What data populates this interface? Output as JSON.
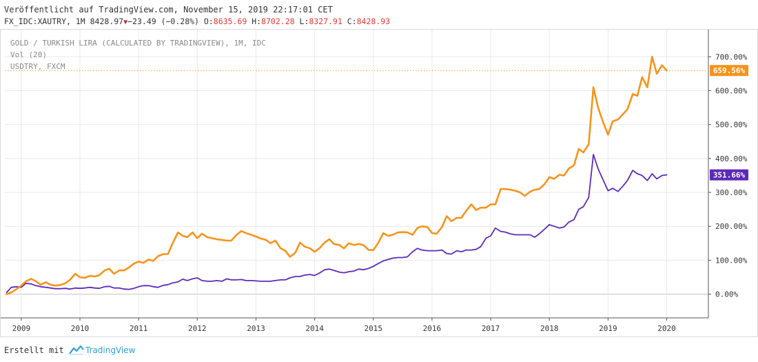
{
  "header": {
    "published": "Veröffentlicht auf TradingView.com, November 15, 2019 22:17:01 CET",
    "symbol_info": "FX_IDC:XAUTRY, 1M 8428.97",
    "change": "−23.49 (−0.28%)",
    "o_label": "O:",
    "o_value": "8635.69",
    "h_label": "H:",
    "h_value": "8702.28",
    "l_label": "L:",
    "l_value": "8327.91",
    "c_label": "C:",
    "c_value": "8428.93"
  },
  "footer": {
    "prefix": "Erstellt mit",
    "brand": "TradingView"
  },
  "colors": {
    "gold": "#f7931a",
    "usd": "#5b2ab8",
    "grid": "#e9e9e9",
    "lastline": "#f7931a"
  },
  "chart_data": {
    "type": "line",
    "legend": [
      "GOLD / TURKISH LIRA (CALCULATED BY TRADINGVIEW), 1M, IDC",
      "Vol (20)",
      "USDTRY, FXCM"
    ],
    "x_ticks": [
      "2009",
      "2010",
      "2011",
      "2012",
      "2013",
      "2014",
      "2015",
      "2016",
      "2017",
      "2018",
      "2019",
      "2020"
    ],
    "y_ticks": [
      "0.00%",
      "100.00%",
      "200.00%",
      "300.00%",
      "400.00%",
      "500.00%",
      "600.00%",
      "700.00%"
    ],
    "ylim": [
      -70,
      780
    ],
    "xlim": [
      2008.72,
      2020.71
    ],
    "grid": true,
    "series": [
      {
        "name": "GOLD / TURKISH LIRA",
        "color": "#f7931a",
        "last_label": "659.56%",
        "points": [
          [
            2008.75,
            0
          ],
          [
            2008.83,
            5
          ],
          [
            2008.92,
            15
          ],
          [
            2009.0,
            25
          ],
          [
            2009.08,
            38
          ],
          [
            2009.17,
            45
          ],
          [
            2009.25,
            38
          ],
          [
            2009.33,
            28
          ],
          [
            2009.42,
            35
          ],
          [
            2009.5,
            28
          ],
          [
            2009.58,
            25
          ],
          [
            2009.67,
            27
          ],
          [
            2009.75,
            32
          ],
          [
            2009.83,
            42
          ],
          [
            2009.92,
            60
          ],
          [
            2010.0,
            50
          ],
          [
            2010.08,
            48
          ],
          [
            2010.17,
            54
          ],
          [
            2010.25,
            52
          ],
          [
            2010.33,
            56
          ],
          [
            2010.42,
            70
          ],
          [
            2010.5,
            75
          ],
          [
            2010.58,
            60
          ],
          [
            2010.67,
            70
          ],
          [
            2010.75,
            70
          ],
          [
            2010.83,
            78
          ],
          [
            2010.92,
            90
          ],
          [
            2011.0,
            96
          ],
          [
            2011.08,
            92
          ],
          [
            2011.17,
            102
          ],
          [
            2011.25,
            98
          ],
          [
            2011.33,
            112
          ],
          [
            2011.42,
            118
          ],
          [
            2011.5,
            118
          ],
          [
            2011.58,
            150
          ],
          [
            2011.67,
            182
          ],
          [
            2011.75,
            172
          ],
          [
            2011.83,
            168
          ],
          [
            2011.92,
            182
          ],
          [
            2012.0,
            165
          ],
          [
            2012.08,
            178
          ],
          [
            2012.17,
            168
          ],
          [
            2012.25,
            165
          ],
          [
            2012.33,
            162
          ],
          [
            2012.42,
            160
          ],
          [
            2012.5,
            158
          ],
          [
            2012.58,
            158
          ],
          [
            2012.67,
            175
          ],
          [
            2012.75,
            186
          ],
          [
            2012.83,
            180
          ],
          [
            2012.92,
            175
          ],
          [
            2013.0,
            170
          ],
          [
            2013.08,
            164
          ],
          [
            2013.17,
            160
          ],
          [
            2013.25,
            150
          ],
          [
            2013.33,
            158
          ],
          [
            2013.42,
            135
          ],
          [
            2013.5,
            128
          ],
          [
            2013.58,
            110
          ],
          [
            2013.67,
            122
          ],
          [
            2013.75,
            152
          ],
          [
            2013.83,
            140
          ],
          [
            2013.92,
            135
          ],
          [
            2014.0,
            125
          ],
          [
            2014.08,
            135
          ],
          [
            2014.17,
            152
          ],
          [
            2014.25,
            162
          ],
          [
            2014.33,
            148
          ],
          [
            2014.42,
            145
          ],
          [
            2014.5,
            135
          ],
          [
            2014.58,
            150
          ],
          [
            2014.67,
            145
          ],
          [
            2014.75,
            148
          ],
          [
            2014.83,
            145
          ],
          [
            2014.92,
            130
          ],
          [
            2015.0,
            130
          ],
          [
            2015.08,
            150
          ],
          [
            2015.17,
            180
          ],
          [
            2015.25,
            172
          ],
          [
            2015.33,
            175
          ],
          [
            2015.42,
            182
          ],
          [
            2015.5,
            183
          ],
          [
            2015.58,
            182
          ],
          [
            2015.67,
            175
          ],
          [
            2015.75,
            195
          ],
          [
            2015.83,
            200
          ],
          [
            2015.92,
            198
          ],
          [
            2016.0,
            180
          ],
          [
            2016.08,
            178
          ],
          [
            2016.17,
            198
          ],
          [
            2016.25,
            230
          ],
          [
            2016.33,
            215
          ],
          [
            2016.42,
            225
          ],
          [
            2016.5,
            225
          ],
          [
            2016.58,
            245
          ],
          [
            2016.67,
            265
          ],
          [
            2016.75,
            248
          ],
          [
            2016.83,
            255
          ],
          [
            2016.92,
            255
          ],
          [
            2017.0,
            265
          ],
          [
            2017.08,
            265
          ],
          [
            2017.17,
            310
          ],
          [
            2017.25,
            310
          ],
          [
            2017.33,
            308
          ],
          [
            2017.42,
            305
          ],
          [
            2017.5,
            300
          ],
          [
            2017.58,
            290
          ],
          [
            2017.67,
            302
          ],
          [
            2017.75,
            308
          ],
          [
            2017.83,
            310
          ],
          [
            2017.92,
            325
          ],
          [
            2018.0,
            345
          ],
          [
            2018.08,
            340
          ],
          [
            2018.17,
            352
          ],
          [
            2018.25,
            350
          ],
          [
            2018.33,
            370
          ],
          [
            2018.42,
            380
          ],
          [
            2018.5,
            428
          ],
          [
            2018.58,
            418
          ],
          [
            2018.67,
            442
          ],
          [
            2018.75,
            610
          ],
          [
            2018.83,
            550
          ],
          [
            2018.92,
            505
          ],
          [
            2019.0,
            470
          ],
          [
            2019.08,
            510
          ],
          [
            2019.17,
            515
          ],
          [
            2019.25,
            530
          ],
          [
            2019.33,
            545
          ],
          [
            2019.42,
            590
          ],
          [
            2019.5,
            585
          ],
          [
            2019.58,
            640
          ],
          [
            2019.67,
            610
          ],
          [
            2019.75,
            700
          ],
          [
            2019.83,
            650
          ],
          [
            2019.92,
            675
          ],
          [
            2020.0,
            659.56
          ]
        ]
      },
      {
        "name": "USDTRY, FXCM",
        "color": "#5b2ab8",
        "last_label": "351.66%",
        "points": [
          [
            2008.75,
            5
          ],
          [
            2008.83,
            20
          ],
          [
            2008.92,
            22
          ],
          [
            2009.0,
            20
          ],
          [
            2009.08,
            32
          ],
          [
            2009.17,
            30
          ],
          [
            2009.25,
            25
          ],
          [
            2009.33,
            22
          ],
          [
            2009.42,
            20
          ],
          [
            2009.5,
            18
          ],
          [
            2009.58,
            16
          ],
          [
            2009.67,
            16
          ],
          [
            2009.75,
            17
          ],
          [
            2009.83,
            15
          ],
          [
            2009.92,
            18
          ],
          [
            2010.0,
            17
          ],
          [
            2010.08,
            18
          ],
          [
            2010.17,
            20
          ],
          [
            2010.25,
            18
          ],
          [
            2010.33,
            17
          ],
          [
            2010.42,
            22
          ],
          [
            2010.5,
            23
          ],
          [
            2010.58,
            18
          ],
          [
            2010.67,
            18
          ],
          [
            2010.75,
            15
          ],
          [
            2010.83,
            14
          ],
          [
            2010.92,
            17
          ],
          [
            2011.0,
            22
          ],
          [
            2011.08,
            25
          ],
          [
            2011.17,
            25
          ],
          [
            2011.25,
            22
          ],
          [
            2011.33,
            20
          ],
          [
            2011.42,
            26
          ],
          [
            2011.5,
            28
          ],
          [
            2011.58,
            33
          ],
          [
            2011.67,
            36
          ],
          [
            2011.75,
            44
          ],
          [
            2011.83,
            40
          ],
          [
            2011.92,
            45
          ],
          [
            2012.0,
            48
          ],
          [
            2012.08,
            40
          ],
          [
            2012.17,
            38
          ],
          [
            2012.25,
            38
          ],
          [
            2012.33,
            40
          ],
          [
            2012.42,
            38
          ],
          [
            2012.5,
            45
          ],
          [
            2012.58,
            42
          ],
          [
            2012.67,
            42
          ],
          [
            2012.75,
            43
          ],
          [
            2012.83,
            40
          ],
          [
            2012.92,
            40
          ],
          [
            2013.0,
            39
          ],
          [
            2013.08,
            38
          ],
          [
            2013.17,
            38
          ],
          [
            2013.25,
            38
          ],
          [
            2013.33,
            40
          ],
          [
            2013.42,
            42
          ],
          [
            2013.5,
            42
          ],
          [
            2013.58,
            48
          ],
          [
            2013.67,
            52
          ],
          [
            2013.75,
            52
          ],
          [
            2013.83,
            56
          ],
          [
            2013.92,
            58
          ],
          [
            2014.0,
            55
          ],
          [
            2014.08,
            62
          ],
          [
            2014.17,
            72
          ],
          [
            2014.25,
            74
          ],
          [
            2014.33,
            70
          ],
          [
            2014.42,
            65
          ],
          [
            2014.5,
            63
          ],
          [
            2014.58,
            66
          ],
          [
            2014.67,
            68
          ],
          [
            2014.75,
            74
          ],
          [
            2014.83,
            72
          ],
          [
            2014.92,
            76
          ],
          [
            2015.0,
            82
          ],
          [
            2015.08,
            90
          ],
          [
            2015.17,
            98
          ],
          [
            2015.25,
            102
          ],
          [
            2015.33,
            106
          ],
          [
            2015.42,
            108
          ],
          [
            2015.5,
            108
          ],
          [
            2015.58,
            110
          ],
          [
            2015.67,
            125
          ],
          [
            2015.75,
            135
          ],
          [
            2015.83,
            130
          ],
          [
            2015.92,
            128
          ],
          [
            2016.0,
            128
          ],
          [
            2016.08,
            128
          ],
          [
            2016.17,
            130
          ],
          [
            2016.25,
            120
          ],
          [
            2016.33,
            118
          ],
          [
            2016.42,
            128
          ],
          [
            2016.5,
            125
          ],
          [
            2016.58,
            130
          ],
          [
            2016.67,
            130
          ],
          [
            2016.75,
            132
          ],
          [
            2016.83,
            140
          ],
          [
            2016.92,
            165
          ],
          [
            2017.0,
            172
          ],
          [
            2017.08,
            195
          ],
          [
            2017.17,
            185
          ],
          [
            2017.25,
            183
          ],
          [
            2017.33,
            178
          ],
          [
            2017.42,
            175
          ],
          [
            2017.5,
            175
          ],
          [
            2017.58,
            175
          ],
          [
            2017.67,
            175
          ],
          [
            2017.75,
            168
          ],
          [
            2017.83,
            178
          ],
          [
            2017.92,
            192
          ],
          [
            2018.0,
            205
          ],
          [
            2018.08,
            200
          ],
          [
            2018.17,
            195
          ],
          [
            2018.25,
            198
          ],
          [
            2018.33,
            212
          ],
          [
            2018.42,
            220
          ],
          [
            2018.5,
            250
          ],
          [
            2018.58,
            258
          ],
          [
            2018.67,
            285
          ],
          [
            2018.75,
            412
          ],
          [
            2018.83,
            370
          ],
          [
            2018.92,
            335
          ],
          [
            2019.0,
            305
          ],
          [
            2019.08,
            312
          ],
          [
            2019.17,
            303
          ],
          [
            2019.25,
            318
          ],
          [
            2019.33,
            335
          ],
          [
            2019.42,
            365
          ],
          [
            2019.5,
            355
          ],
          [
            2019.58,
            350
          ],
          [
            2019.67,
            335
          ],
          [
            2019.75,
            355
          ],
          [
            2019.83,
            340
          ],
          [
            2019.92,
            350
          ],
          [
            2020.0,
            351.66
          ]
        ]
      }
    ]
  }
}
